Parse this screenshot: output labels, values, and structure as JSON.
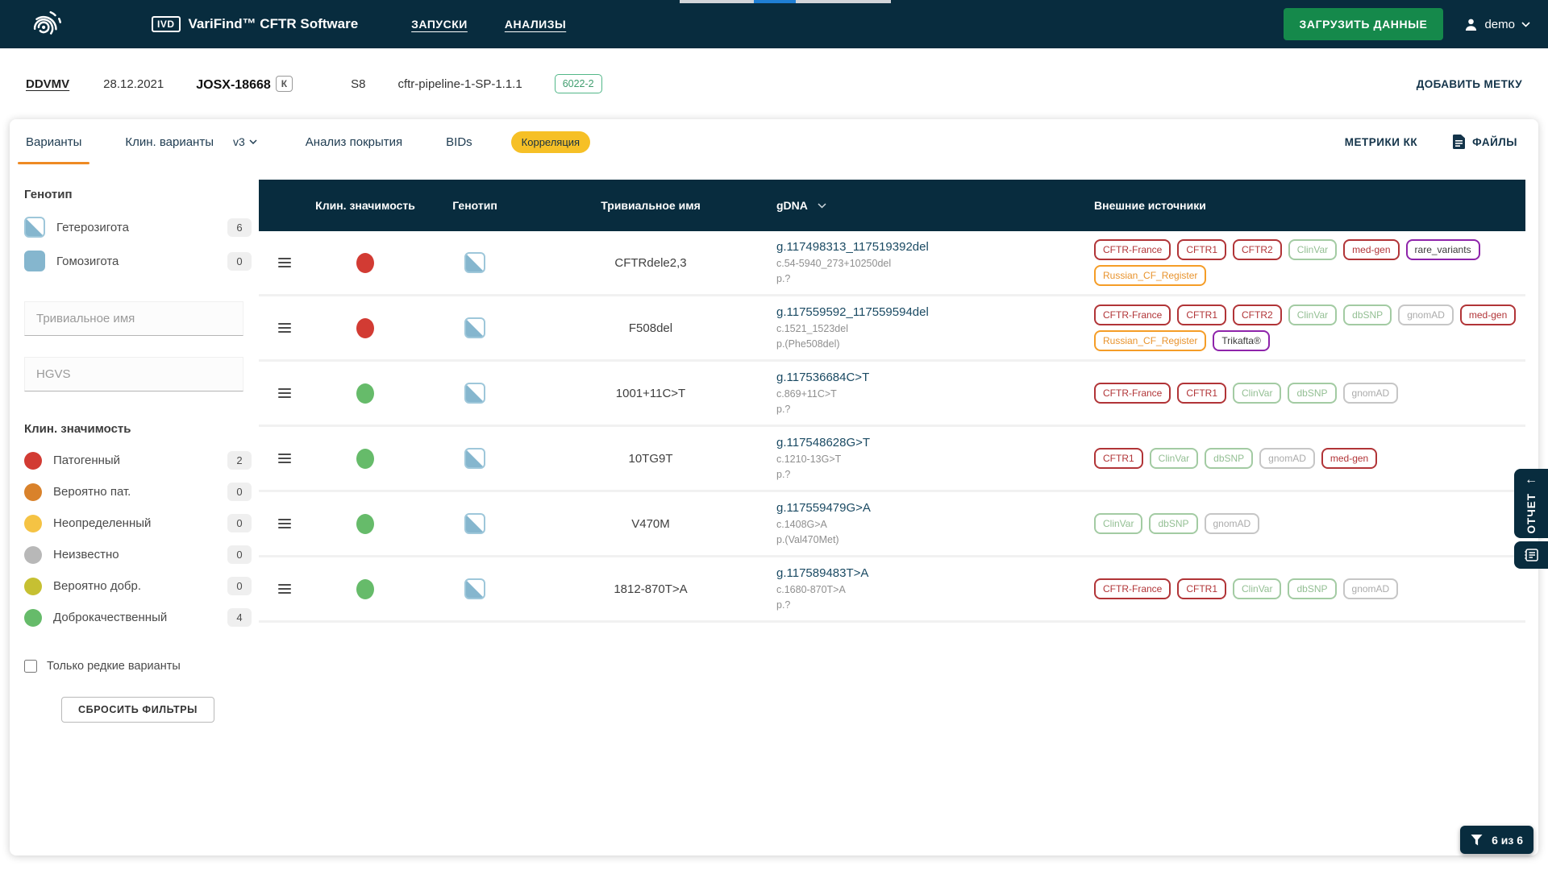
{
  "topbar": {
    "ivd_label": "IVD",
    "brand": "VariFind™ CFTR Software",
    "nav": [
      {
        "label": "ЗАПУСКИ"
      },
      {
        "label": "АНАЛИЗЫ"
      }
    ],
    "upload_button": "ЗАГРУЗИТЬ ДАННЫЕ",
    "user": "demo"
  },
  "breadcrumb": {
    "code": "DDVMV",
    "date": "28.12.2021",
    "sample_id": "JOSX-18668",
    "sample_flag": "К",
    "position": "S8",
    "pipeline": "cftr-pipeline-1-SP-1.1.1",
    "kit_badge": "6022-2",
    "add_label_button": "ДОБАВИТЬ МЕТКУ"
  },
  "tabs": {
    "items": [
      {
        "label": "Варианты",
        "active": true
      },
      {
        "label": "Клин. варианты",
        "active": false
      },
      {
        "label": "Анализ покрытия",
        "active": false
      },
      {
        "label": "BIDs",
        "active": false
      }
    ],
    "version_selector": "v3",
    "correlation_badge": "Корреляция",
    "metrics_label": "МЕТРИКИ КК",
    "files_label": "ФАЙЛЫ"
  },
  "sidebar": {
    "genotype": {
      "title": "Генотип",
      "items": [
        {
          "label": "Гетерозигота",
          "count": "6",
          "type": "heterozygote"
        },
        {
          "label": "Гомозигота",
          "count": "0",
          "type": "homozygote"
        }
      ]
    },
    "trivial_name_placeholder": "Тривиальное имя",
    "hgvs_placeholder": "HGVS",
    "significance": {
      "title": "Клин. значимость",
      "items": [
        {
          "label": "Патогенный",
          "count": "2",
          "color": "#d23b33"
        },
        {
          "label": "Вероятно пат.",
          "count": "0",
          "color": "#d9822b"
        },
        {
          "label": "Неопределенный",
          "count": "0",
          "color": "#f5c344"
        },
        {
          "label": "Неизвестно",
          "count": "0",
          "color": "#b8b8b8"
        },
        {
          "label": "Вероятно добр.",
          "count": "0",
          "color": "#c6c032"
        },
        {
          "label": "Доброкачественный",
          "count": "4",
          "color": "#66bb6a"
        }
      ]
    },
    "rare_only_label": "Только редкие варианты",
    "reset_button": "СБРОСИТЬ ФИЛЬТРЫ"
  },
  "table": {
    "columns": {
      "significance": "Клин. значимость",
      "genotype": "Генотип",
      "trivial_name": "Тривиальное имя",
      "gdna": "gDNA",
      "sources": "Внешние источники"
    },
    "rows": [
      {
        "significance": "pathogenic",
        "genotype": "heterozygote",
        "name": "CFTRdele2,3",
        "gdna_g": "g.117498313_117519392del",
        "gdna_c": "c.54-5940_273+10250del",
        "gdna_p": "p.?",
        "sources": [
          {
            "label": "CFTR-France",
            "style": "red"
          },
          {
            "label": "CFTR1",
            "style": "red"
          },
          {
            "label": "CFTR2",
            "style": "red"
          },
          {
            "label": "ClinVar",
            "style": "green"
          },
          {
            "label": "med-gen",
            "style": "red"
          },
          {
            "label": "rare_variants",
            "style": "purple"
          },
          {
            "label": "Russian_CF_Register",
            "style": "orange"
          }
        ]
      },
      {
        "significance": "pathogenic",
        "genotype": "heterozygote",
        "name": "F508del",
        "gdna_g": "g.117559592_117559594del",
        "gdna_c": "c.1521_1523del",
        "gdna_p": "p.(Phe508del)",
        "sources": [
          {
            "label": "CFTR-France",
            "style": "red"
          },
          {
            "label": "CFTR1",
            "style": "red"
          },
          {
            "label": "CFTR2",
            "style": "red"
          },
          {
            "label": "ClinVar",
            "style": "green"
          },
          {
            "label": "dbSNP",
            "style": "green"
          },
          {
            "label": "gnomAD",
            "style": "gray"
          },
          {
            "label": "med-gen",
            "style": "red"
          },
          {
            "label": "Russian_CF_Register",
            "style": "orange"
          },
          {
            "label": "Trikafta®",
            "style": "purple"
          }
        ]
      },
      {
        "significance": "benign",
        "genotype": "heterozygote",
        "name": "1001+11C>T",
        "gdna_g": "g.117536684C>T",
        "gdna_c": "c.869+11C>T",
        "gdna_p": "p.?",
        "sources": [
          {
            "label": "CFTR-France",
            "style": "red"
          },
          {
            "label": "CFTR1",
            "style": "red"
          },
          {
            "label": "ClinVar",
            "style": "green"
          },
          {
            "label": "dbSNP",
            "style": "green"
          },
          {
            "label": "gnomAD",
            "style": "gray"
          }
        ]
      },
      {
        "significance": "benign",
        "genotype": "heterozygote",
        "name": "10TG9T",
        "gdna_g": "g.117548628G>T",
        "gdna_c": "c.1210-13G>T",
        "gdna_p": "p.?",
        "sources": [
          {
            "label": "CFTR1",
            "style": "red"
          },
          {
            "label": "ClinVar",
            "style": "green"
          },
          {
            "label": "dbSNP",
            "style": "green"
          },
          {
            "label": "gnomAD",
            "style": "gray"
          },
          {
            "label": "med-gen",
            "style": "red"
          }
        ]
      },
      {
        "significance": "benign",
        "genotype": "heterozygote",
        "name": "V470M",
        "gdna_g": "g.117559479G>A",
        "gdna_c": "c.1408G>A",
        "gdna_p": "p.(Val470Met)",
        "sources": [
          {
            "label": "ClinVar",
            "style": "green"
          },
          {
            "label": "dbSNP",
            "style": "green"
          },
          {
            "label": "gnomAD",
            "style": "gray"
          }
        ]
      },
      {
        "significance": "benign",
        "genotype": "heterozygote",
        "name": "1812-870T>A",
        "gdna_g": "g.117589483T>A",
        "gdna_c": "c.1680-870T>A",
        "gdna_p": "p.?",
        "sources": [
          {
            "label": "CFTR-France",
            "style": "red"
          },
          {
            "label": "CFTR1",
            "style": "red"
          },
          {
            "label": "ClinVar",
            "style": "green"
          },
          {
            "label": "dbSNP",
            "style": "green"
          },
          {
            "label": "gnomAD",
            "style": "gray"
          }
        ]
      }
    ]
  },
  "report_panel": {
    "label": "ОТЧЕТ"
  },
  "filter_chip": {
    "label": "6 из 6"
  },
  "colors": {
    "topbar_bg": "#082c3e",
    "accent_orange": "#ee8a23",
    "correlation_yellow": "#f6c026",
    "upload_green": "#15894b",
    "genotype_blue": "#85b6ce",
    "scroll_thumb_blue": "#1f7fd4",
    "badge_red": "#b13437",
    "badge_green": "#a3cba3",
    "badge_gray": "#c6c6c6",
    "badge_orange": "#f59d27",
    "badge_purple": "#8e24aa",
    "kit_badge_green": "#52b788"
  }
}
